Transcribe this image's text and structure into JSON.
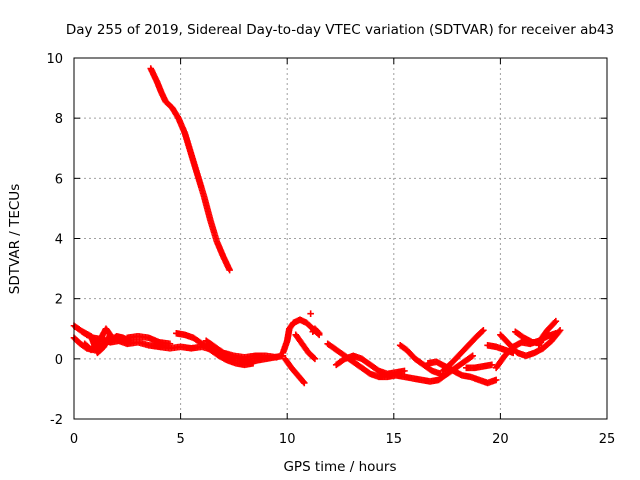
{
  "chart_data": {
    "type": "scatter",
    "title": "Day 255 of 2019, Sidereal Day-to-day VTEC variation (SDTVAR) for receiver ab43",
    "xlabel": "GPS time / hours",
    "ylabel": "SDTVAR / TECUs",
    "xlim": [
      0,
      25
    ],
    "ylim": [
      -2,
      10
    ],
    "xticks": [
      0,
      5,
      10,
      15,
      20,
      25
    ],
    "yticks": [
      -2,
      0,
      2,
      4,
      6,
      8,
      10
    ],
    "grid": true,
    "marker": "plus",
    "series_color": "#ff0000",
    "tracks": [
      [
        [
          3.6,
          9.65
        ],
        [
          3.9,
          9.2
        ],
        [
          4.1,
          8.85
        ],
        [
          4.3,
          8.55
        ],
        [
          4.6,
          8.35
        ],
        [
          4.9,
          8.0
        ],
        [
          5.2,
          7.5
        ],
        [
          5.5,
          6.8
        ],
        [
          5.8,
          6.1
        ],
        [
          6.1,
          5.4
        ],
        [
          6.4,
          4.6
        ],
        [
          6.7,
          3.9
        ],
        [
          7.0,
          3.4
        ],
        [
          7.3,
          2.95
        ]
      ],
      [
        [
          0.0,
          1.1
        ],
        [
          0.3,
          0.95
        ],
        [
          0.6,
          0.8
        ],
        [
          0.9,
          0.7
        ],
        [
          1.3,
          0.65
        ],
        [
          1.7,
          0.55
        ],
        [
          2.1,
          0.6
        ],
        [
          2.5,
          0.5
        ],
        [
          3.0,
          0.55
        ],
        [
          3.5,
          0.45
        ],
        [
          4.0,
          0.4
        ],
        [
          4.5,
          0.35
        ],
        [
          5.0,
          0.4
        ],
        [
          5.5,
          0.35
        ],
        [
          6.0,
          0.4
        ],
        [
          6.5,
          0.3
        ],
        [
          7.0,
          0.2
        ],
        [
          7.5,
          0.1
        ],
        [
          8.0,
          0.05
        ],
        [
          8.5,
          0.1
        ],
        [
          9.0,
          0.1
        ],
        [
          9.5,
          0.05
        ]
      ],
      [
        [
          0.0,
          0.7
        ],
        [
          0.3,
          0.5
        ],
        [
          0.6,
          0.35
        ],
        [
          0.9,
          0.3
        ],
        [
          1.2,
          0.4
        ],
        [
          1.5,
          0.55
        ],
        [
          1.8,
          0.65
        ],
        [
          2.0,
          0.75
        ],
        [
          2.3,
          0.7
        ],
        [
          2.6,
          0.6
        ]
      ],
      [
        [
          0.4,
          0.9
        ],
        [
          0.8,
          0.75
        ],
        [
          1.1,
          0.2
        ],
        [
          1.4,
          0.4
        ],
        [
          1.7,
          0.8
        ],
        [
          1.5,
          1.0
        ],
        [
          1.2,
          0.6
        ],
        [
          0.8,
          0.3
        ],
        [
          0.5,
          0.5
        ]
      ],
      [
        [
          2.5,
          0.7
        ],
        [
          3.0,
          0.75
        ],
        [
          3.5,
          0.7
        ],
        [
          4.0,
          0.55
        ],
        [
          4.5,
          0.5
        ]
      ],
      [
        [
          4.8,
          0.85
        ],
        [
          5.2,
          0.8
        ],
        [
          5.6,
          0.7
        ],
        [
          6.0,
          0.5
        ],
        [
          6.4,
          0.3
        ],
        [
          6.8,
          0.1
        ],
        [
          7.2,
          -0.05
        ],
        [
          7.6,
          -0.15
        ],
        [
          8.0,
          -0.2
        ],
        [
          8.4,
          -0.15
        ]
      ],
      [
        [
          6.2,
          0.6
        ],
        [
          6.6,
          0.4
        ],
        [
          7.0,
          0.2
        ],
        [
          7.4,
          0.05
        ],
        [
          7.8,
          0.0
        ],
        [
          8.2,
          -0.1
        ],
        [
          8.6,
          -0.05
        ],
        [
          9.0,
          0.0
        ],
        [
          9.4,
          0.05
        ],
        [
          9.8,
          0.1
        ]
      ],
      [
        [
          9.8,
          0.2
        ],
        [
          10.0,
          0.6
        ],
        [
          10.1,
          1.0
        ],
        [
          10.3,
          1.2
        ],
        [
          10.6,
          1.3
        ],
        [
          10.9,
          1.2
        ],
        [
          11.2,
          1.0
        ],
        [
          11.5,
          0.8
        ]
      ],
      [
        [
          9.9,
          0.0
        ],
        [
          10.2,
          -0.3
        ],
        [
          10.5,
          -0.55
        ],
        [
          10.8,
          -0.8
        ]
      ],
      [
        [
          10.4,
          0.8
        ],
        [
          10.7,
          0.5
        ],
        [
          11.0,
          0.2
        ],
        [
          11.3,
          0.0
        ]
      ],
      [
        [
          11.1,
          1.5
        ]
      ],
      [
        [
          11.5,
          0.85
        ],
        [
          11.3,
          1.0
        ],
        [
          11.2,
          0.9
        ]
      ],
      [
        [
          11.9,
          0.5
        ],
        [
          12.3,
          0.3
        ],
        [
          12.7,
          0.1
        ],
        [
          13.1,
          -0.1
        ],
        [
          13.5,
          -0.3
        ],
        [
          13.9,
          -0.5
        ],
        [
          14.3,
          -0.6
        ],
        [
          14.7,
          -0.6
        ],
        [
          15.1,
          -0.55
        ],
        [
          15.5,
          -0.6
        ],
        [
          15.9,
          -0.65
        ],
        [
          16.3,
          -0.7
        ],
        [
          16.7,
          -0.75
        ],
        [
          17.1,
          -0.7
        ],
        [
          17.5,
          -0.5
        ],
        [
          17.9,
          -0.3
        ],
        [
          18.3,
          -0.1
        ],
        [
          18.7,
          0.1
        ]
      ],
      [
        [
          12.3,
          -0.2
        ],
        [
          12.7,
          0.0
        ],
        [
          13.1,
          0.1
        ],
        [
          13.5,
          0.0
        ],
        [
          13.9,
          -0.2
        ],
        [
          14.3,
          -0.4
        ],
        [
          14.7,
          -0.5
        ],
        [
          15.1,
          -0.45
        ],
        [
          15.5,
          -0.4
        ]
      ],
      [
        [
          15.3,
          0.45
        ],
        [
          15.6,
          0.3
        ],
        [
          16.0,
          0.0
        ],
        [
          16.4,
          -0.2
        ],
        [
          16.8,
          -0.4
        ],
        [
          17.2,
          -0.5
        ]
      ],
      [
        [
          16.6,
          -0.15
        ],
        [
          17.0,
          -0.1
        ],
        [
          17.4,
          -0.25
        ],
        [
          17.8,
          -0.4
        ],
        [
          18.2,
          -0.55
        ],
        [
          18.6,
          -0.6
        ],
        [
          19.0,
          -0.7
        ],
        [
          19.4,
          -0.8
        ],
        [
          19.8,
          -0.7
        ]
      ],
      [
        [
          17.3,
          -0.4
        ],
        [
          17.7,
          -0.15
        ],
        [
          18.1,
          0.15
        ],
        [
          18.5,
          0.45
        ],
        [
          18.9,
          0.75
        ],
        [
          19.2,
          0.95
        ]
      ],
      [
        [
          18.4,
          -0.3
        ],
        [
          18.8,
          -0.3
        ],
        [
          19.2,
          -0.25
        ],
        [
          19.6,
          -0.2
        ]
      ],
      [
        [
          19.4,
          0.45
        ],
        [
          19.8,
          0.4
        ],
        [
          20.2,
          0.3
        ],
        [
          20.6,
          0.2
        ]
      ],
      [
        [
          19.8,
          -0.3
        ],
        [
          20.2,
          0.1
        ],
        [
          20.6,
          0.4
        ],
        [
          21.0,
          0.55
        ],
        [
          21.4,
          0.5
        ],
        [
          21.8,
          0.6
        ],
        [
          22.2,
          0.75
        ],
        [
          22.6,
          0.85
        ]
      ],
      [
        [
          20.0,
          0.8
        ],
        [
          20.4,
          0.5
        ],
        [
          20.8,
          0.2
        ],
        [
          21.2,
          0.1
        ],
        [
          21.6,
          0.2
        ],
        [
          22.0,
          0.35
        ],
        [
          22.4,
          0.6
        ],
        [
          22.8,
          0.95
        ]
      ],
      [
        [
          20.7,
          0.9
        ],
        [
          21.1,
          0.7
        ],
        [
          21.5,
          0.55
        ],
        [
          21.9,
          0.55
        ]
      ],
      [
        [
          21.8,
          0.45
        ],
        [
          22.0,
          0.75
        ],
        [
          22.2,
          0.95
        ],
        [
          22.4,
          1.1
        ],
        [
          22.6,
          1.25
        ]
      ]
    ]
  }
}
